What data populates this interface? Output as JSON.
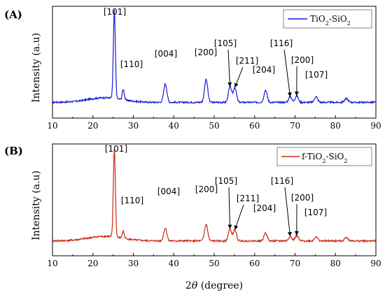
{
  "chart_data": [
    {
      "type": "line",
      "panel_label": "(A)",
      "ylabel": "Intensity (a.u)",
      "xlabel": "",
      "xlim": [
        10,
        90
      ],
      "x_ticks": [
        "10",
        "20",
        "30",
        "40",
        "50",
        "60",
        "70",
        "80",
        "90"
      ],
      "y_ticks_shown": false,
      "legend": {
        "position": "top-right",
        "name": "TiO",
        "sub1": "2",
        "mid": "-SiO",
        "sub2": "2"
      },
      "series_color": "#1a1ad6",
      "baseline": 0.08,
      "peaks": [
        {
          "label": "[101]",
          "x": 25.3,
          "y": 1.0
        },
        {
          "label": "[110]",
          "x": 27.5,
          "y": 0.16
        },
        {
          "label": "[004]",
          "x": 37.9,
          "y": 0.25
        },
        {
          "label": "[200]",
          "x": 48.0,
          "y": 0.3
        },
        {
          "label": "[105]",
          "x": 53.9,
          "y": 0.22
        },
        {
          "label": "[211]",
          "x": 55.1,
          "y": 0.21
        },
        {
          "label": "[204]",
          "x": 62.7,
          "y": 0.18
        },
        {
          "label": "[116]",
          "x": 68.8,
          "y": 0.11
        },
        {
          "label": "[200]",
          "x": 70.4,
          "y": 0.12
        },
        {
          "label": "[107]",
          "x": 75.2,
          "y": 0.11
        }
      ]
    },
    {
      "type": "line",
      "panel_label": "(B)",
      "ylabel": "Intensity (a.u)",
      "xlabel": "2θ (degree)",
      "xlabel_symbol": "θ",
      "xlim": [
        10,
        90
      ],
      "x_ticks": [
        "10",
        "20",
        "30",
        "40",
        "50",
        "60",
        "70",
        "80",
        "90"
      ],
      "y_ticks_shown": false,
      "legend": {
        "position": "top-right",
        "name": "f-TiO",
        "sub1": "2",
        "mid": "-SiO",
        "sub2": "2"
      },
      "series_color": "#cc2a14",
      "baseline": 0.07,
      "peaks": [
        {
          "label": "[101]",
          "x": 25.3,
          "y": 1.0
        },
        {
          "label": "[110]",
          "x": 27.5,
          "y": 0.12
        },
        {
          "label": "[004]",
          "x": 37.9,
          "y": 0.18
        },
        {
          "label": "[200]",
          "x": 48.0,
          "y": 0.22
        },
        {
          "label": "[105]",
          "x": 53.9,
          "y": 0.17
        },
        {
          "label": "[211]",
          "x": 55.1,
          "y": 0.16
        },
        {
          "label": "[204]",
          "x": 62.7,
          "y": 0.13
        },
        {
          "label": "[116]",
          "x": 68.8,
          "y": 0.09
        },
        {
          "label": "[200]",
          "x": 70.4,
          "y": 0.1
        },
        {
          "label": "[107]",
          "x": 75.2,
          "y": 0.09
        }
      ]
    }
  ]
}
